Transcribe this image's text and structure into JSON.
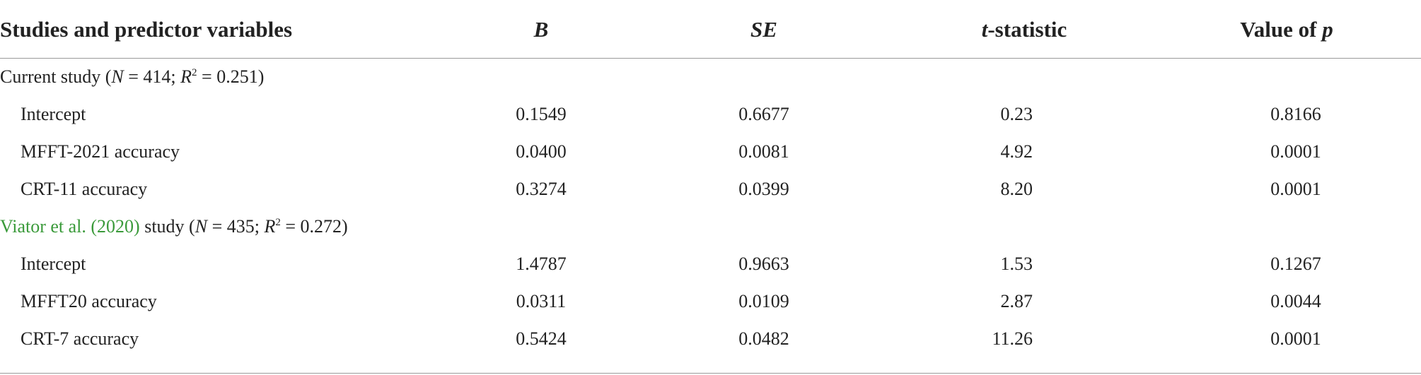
{
  "table": {
    "header": {
      "label": "Studies and predictor variables",
      "b": "B",
      "se": "SE",
      "t": [
        "t",
        "-statistic"
      ],
      "p": [
        "Value of ",
        "p"
      ]
    },
    "groups": [
      {
        "title": [
          "Current study (",
          "N",
          " = 414; ",
          "R",
          "2",
          " = 0.251)"
        ],
        "rows": [
          [
            "Intercept",
            "0.1549",
            "0.6677",
            "0.23",
            "0.8166"
          ],
          [
            "MFFT-2021 accuracy",
            "0.0400",
            "0.0081",
            "4.92",
            "0.0001"
          ],
          [
            "CRT-11 accuracy",
            "0.3274",
            "0.0399",
            "8.20",
            "0.0001"
          ]
        ]
      },
      {
        "title": [
          "Viator et al. (2020)",
          " study (",
          "N",
          " = 435; ",
          "R",
          "2",
          " = 0.272)"
        ],
        "rows": [
          [
            "Intercept",
            "1.4787",
            "0.9663",
            "1.53",
            "0.1267"
          ],
          [
            "MFFT20 accuracy",
            "0.0311",
            "0.0109",
            "2.87",
            "0.0044"
          ],
          [
            "CRT-7 accuracy",
            "0.5424",
            "0.0482",
            "11.26",
            "0.0001"
          ]
        ]
      }
    ]
  }
}
